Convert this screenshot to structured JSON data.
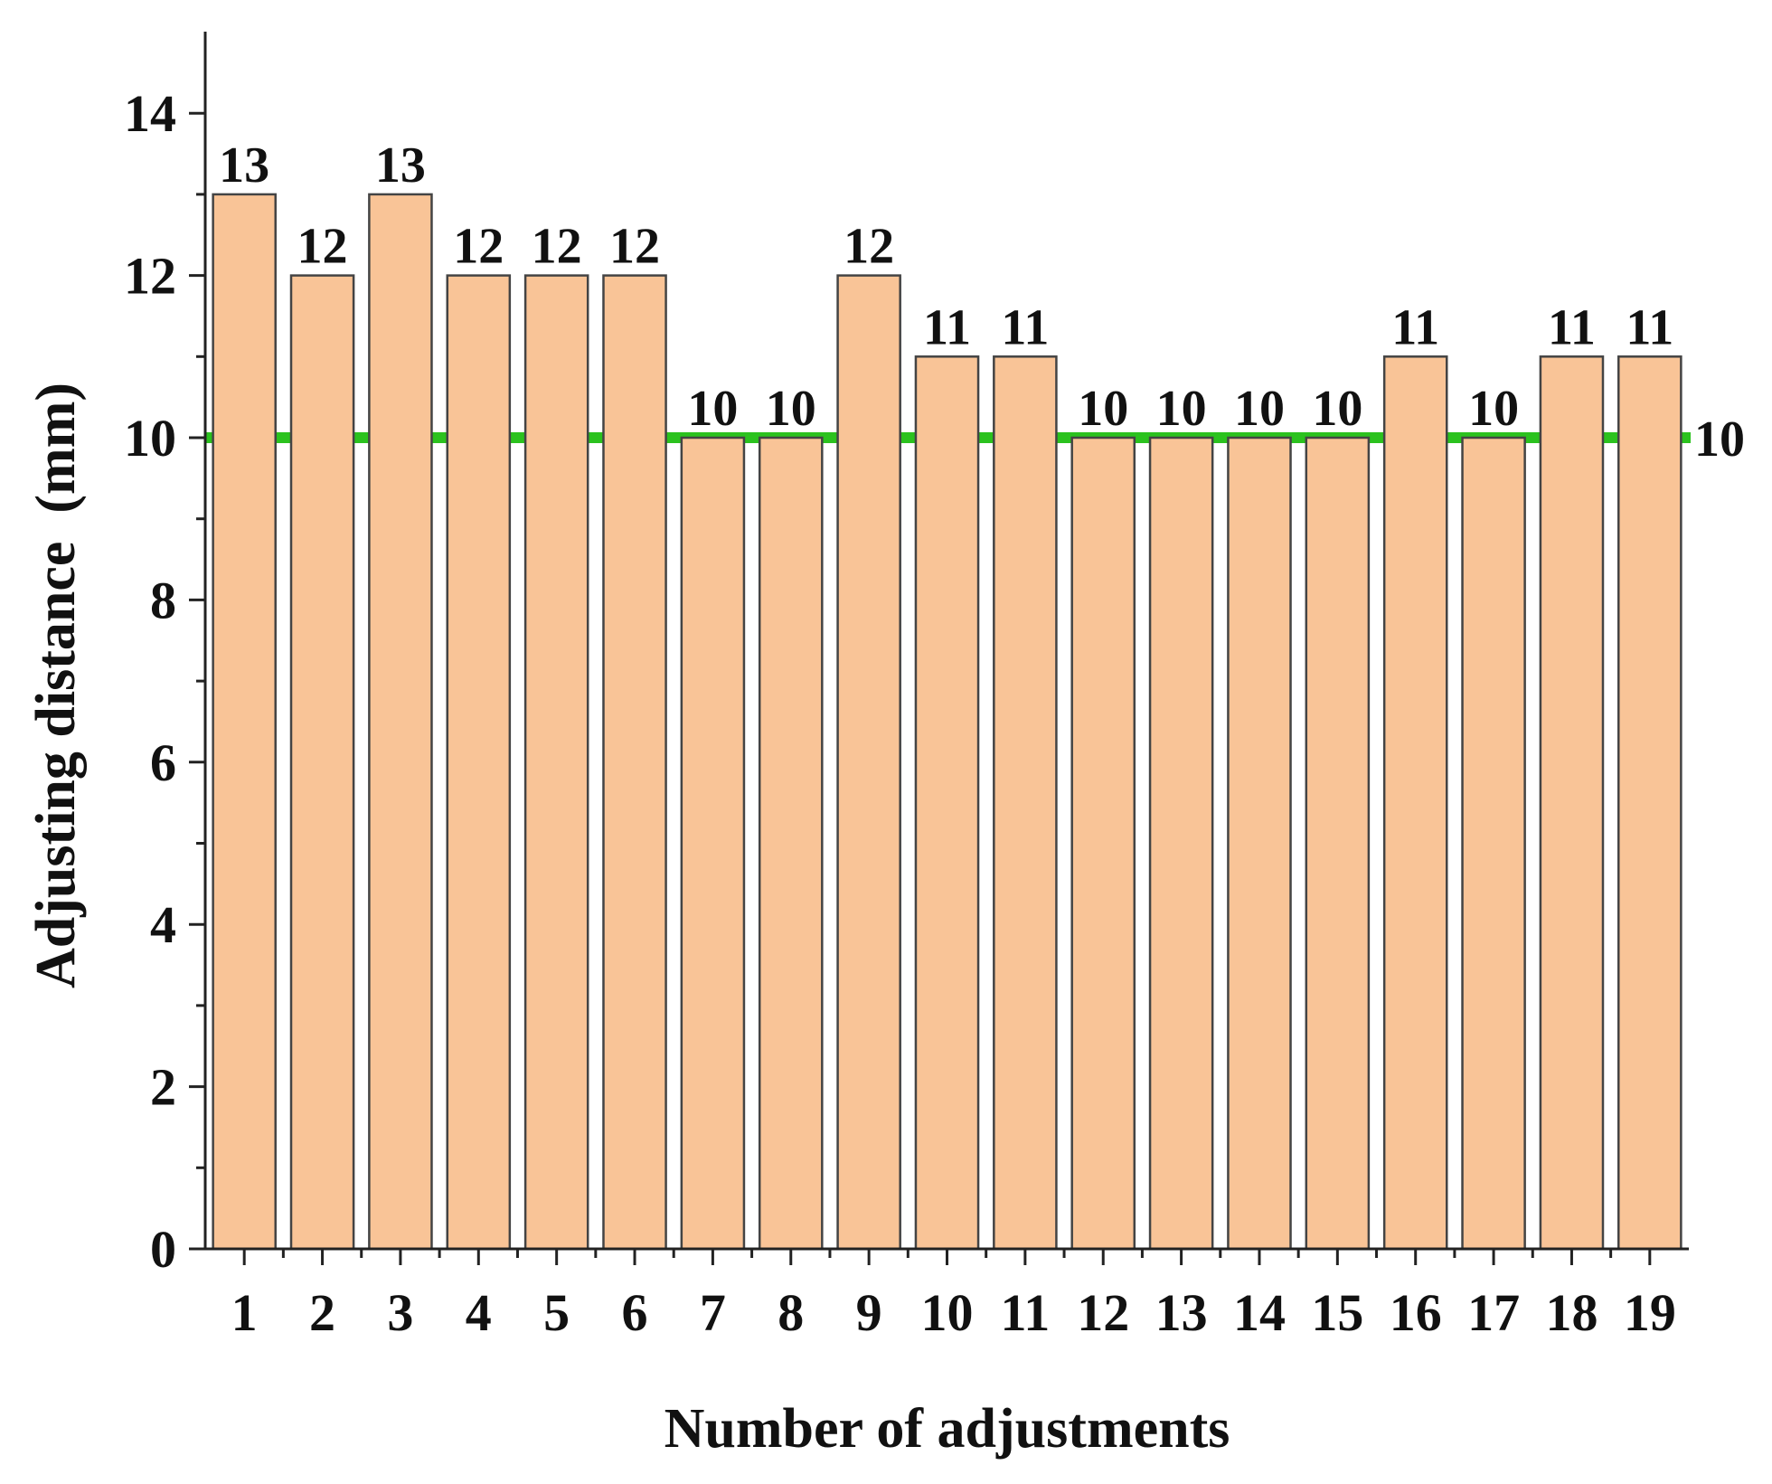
{
  "chart_data": {
    "type": "bar",
    "categories": [
      "1",
      "2",
      "3",
      "4",
      "5",
      "6",
      "7",
      "8",
      "9",
      "10",
      "11",
      "12",
      "13",
      "14",
      "15",
      "16",
      "17",
      "18",
      "19"
    ],
    "values": [
      13,
      12,
      13,
      12,
      12,
      12,
      10,
      10,
      12,
      11,
      11,
      10,
      10,
      10,
      10,
      11,
      10,
      11,
      11
    ],
    "data_labels": [
      "13",
      "12",
      "13",
      "12",
      "12",
      "12",
      "10",
      "10",
      "12",
      "11",
      "11",
      "10",
      "10",
      "10",
      "10",
      "11",
      "10",
      "11",
      "11"
    ],
    "xlabel": "Number of adjustments",
    "ylabel": "Adjusting distance  (mm)",
    "ylim": [
      0,
      15
    ],
    "yticks": [
      0,
      2,
      4,
      6,
      8,
      10,
      12,
      14
    ],
    "ytick_labels": [
      "0",
      "2",
      "4",
      "6",
      "8",
      "10",
      "12",
      "14"
    ],
    "reference_line": {
      "value": 10,
      "label": "10"
    },
    "grid": false,
    "colors": {
      "bar_fill": "#F9C497",
      "bar_stroke": "#444444",
      "reference_line": "#2BC21E"
    }
  }
}
